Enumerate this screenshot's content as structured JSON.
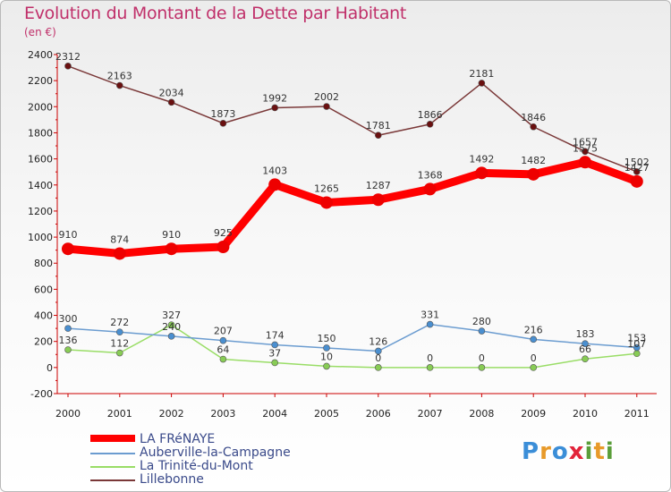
{
  "title": "Evolution du Montant de la Dette par Habitant",
  "subtitle": "(en €)",
  "logo": "Proxiti",
  "chart_data": {
    "type": "line",
    "x": [
      "2000",
      "2001",
      "2002",
      "2003",
      "2004",
      "2005",
      "2006",
      "2007",
      "2008",
      "2009",
      "2010",
      "2011"
    ],
    "ylim": [
      -200,
      2400
    ],
    "yticks": [
      -200,
      0,
      200,
      400,
      600,
      800,
      1000,
      1200,
      1400,
      1600,
      1800,
      2000,
      2200,
      2400
    ],
    "grid": false,
    "legend_position": "bottom-left",
    "series": [
      {
        "name": "LA FRéNAYE",
        "color": "#ff0000",
        "values": [
          910,
          874,
          910,
          925,
          1403,
          1265,
          1287,
          1368,
          1492,
          1482,
          1575,
          1427
        ]
      },
      {
        "name": "Auberville-la-Campagne",
        "color": "#6b9cd0",
        "values": [
          300,
          272,
          240,
          207,
          174,
          150,
          126,
          331,
          280,
          216,
          183,
          153
        ]
      },
      {
        "name": "La Trinité-du-Mont",
        "color": "#99dd66",
        "values": [
          136,
          112,
          327,
          64,
          37,
          10,
          0,
          0,
          0,
          0,
          66,
          107
        ]
      },
      {
        "name": "Lillebonne",
        "color": "#7a3838",
        "values": [
          2312,
          2163,
          2034,
          1873,
          1992,
          2002,
          1781,
          1866,
          2181,
          1846,
          1657,
          1502
        ]
      }
    ]
  }
}
